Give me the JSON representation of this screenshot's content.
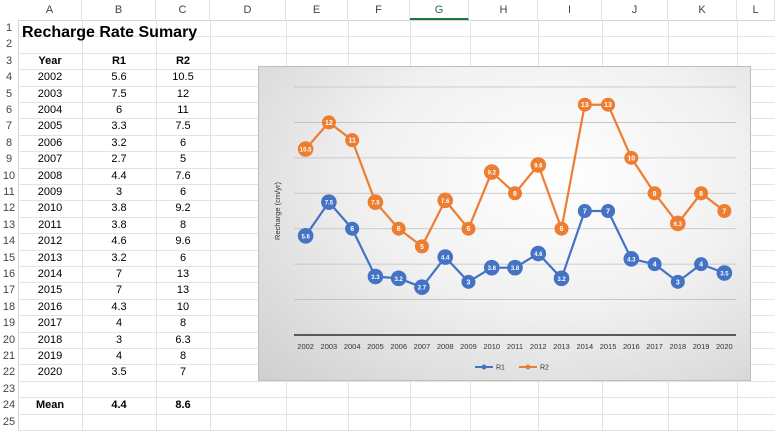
{
  "sheet": {
    "columns": [
      "A",
      "B",
      "C",
      "D",
      "E",
      "F",
      "G",
      "H",
      "I",
      "J",
      "K",
      "L"
    ],
    "selected_column": "G",
    "rows": [
      "1",
      "2",
      "3",
      "4",
      "5",
      "6",
      "7",
      "8",
      "9",
      "10",
      "11",
      "12",
      "13",
      "14",
      "15",
      "16",
      "17",
      "18",
      "19",
      "20",
      "21",
      "22",
      "23",
      "24",
      "25"
    ],
    "title": "Recharge Rate Sumary",
    "headers": [
      "Year",
      "R1",
      "R2"
    ],
    "table": [
      [
        "2002",
        "5.6",
        "10.5"
      ],
      [
        "2003",
        "7.5",
        "12"
      ],
      [
        "2004",
        "6",
        "11"
      ],
      [
        "2005",
        "3.3",
        "7.5"
      ],
      [
        "2006",
        "3.2",
        "6"
      ],
      [
        "2007",
        "2.7",
        "5"
      ],
      [
        "2008",
        "4.4",
        "7.6"
      ],
      [
        "2009",
        "3",
        "6"
      ],
      [
        "2010",
        "3.8",
        "9.2"
      ],
      [
        "2011",
        "3.8",
        "8"
      ],
      [
        "2012",
        "4.6",
        "9.6"
      ],
      [
        "2013",
        "3.2",
        "6"
      ],
      [
        "2014",
        "7",
        "13"
      ],
      [
        "2015",
        "7",
        "13"
      ],
      [
        "2016",
        "4.3",
        "10"
      ],
      [
        "2017",
        "4",
        "8"
      ],
      [
        "2018",
        "3",
        "6.3"
      ],
      [
        "2019",
        "4",
        "8"
      ],
      [
        "2020",
        "3.5",
        "7"
      ]
    ],
    "mean_label": "Mean",
    "mean_r1": "4.4",
    "mean_r2": "8.6"
  },
  "chart_data": {
    "type": "line",
    "categories": [
      "2002",
      "2003",
      "2004",
      "2005",
      "2006",
      "2007",
      "2008",
      "2009",
      "2010",
      "2011",
      "2012",
      "2013",
      "2014",
      "2015",
      "2016",
      "2017",
      "2018",
      "2019",
      "2020"
    ],
    "series": [
      {
        "name": "R1",
        "color": "#4472c4",
        "values": [
          5.6,
          7.5,
          6,
          3.3,
          3.2,
          2.7,
          4.4,
          3,
          3.8,
          3.8,
          4.6,
          3.2,
          7,
          7,
          4.3,
          4,
          3,
          4,
          3.5
        ]
      },
      {
        "name": "R2",
        "color": "#ed7d31",
        "values": [
          10.5,
          12,
          11,
          7.5,
          6,
          5,
          7.6,
          6,
          9.2,
          8,
          9.6,
          6,
          13,
          13,
          10,
          8,
          6.3,
          8,
          7
        ]
      }
    ],
    "data_labels": {
      "R1": [
        "5.6",
        "7.5",
        "6",
        "3.3",
        "3.2",
        "2.7",
        "4.4",
        "3",
        "3.8",
        "3.8",
        "4.6",
        "3.2",
        "7",
        "7",
        "4.3",
        "4",
        "3",
        "4",
        "3.5"
      ],
      "R2": [
        "10.5",
        "12",
        "11",
        "7.5",
        "6",
        "5",
        "7.6",
        "6",
        "9.2",
        "8",
        "9.6",
        "6",
        "13",
        "13",
        "10",
        "8",
        "6.3",
        "8",
        "7"
      ]
    },
    "ylabel": "Recharge (cm/yr)",
    "xlabel": "",
    "title": "",
    "ylim": [
      0,
      14
    ],
    "grid": true,
    "legend": "bottom"
  }
}
